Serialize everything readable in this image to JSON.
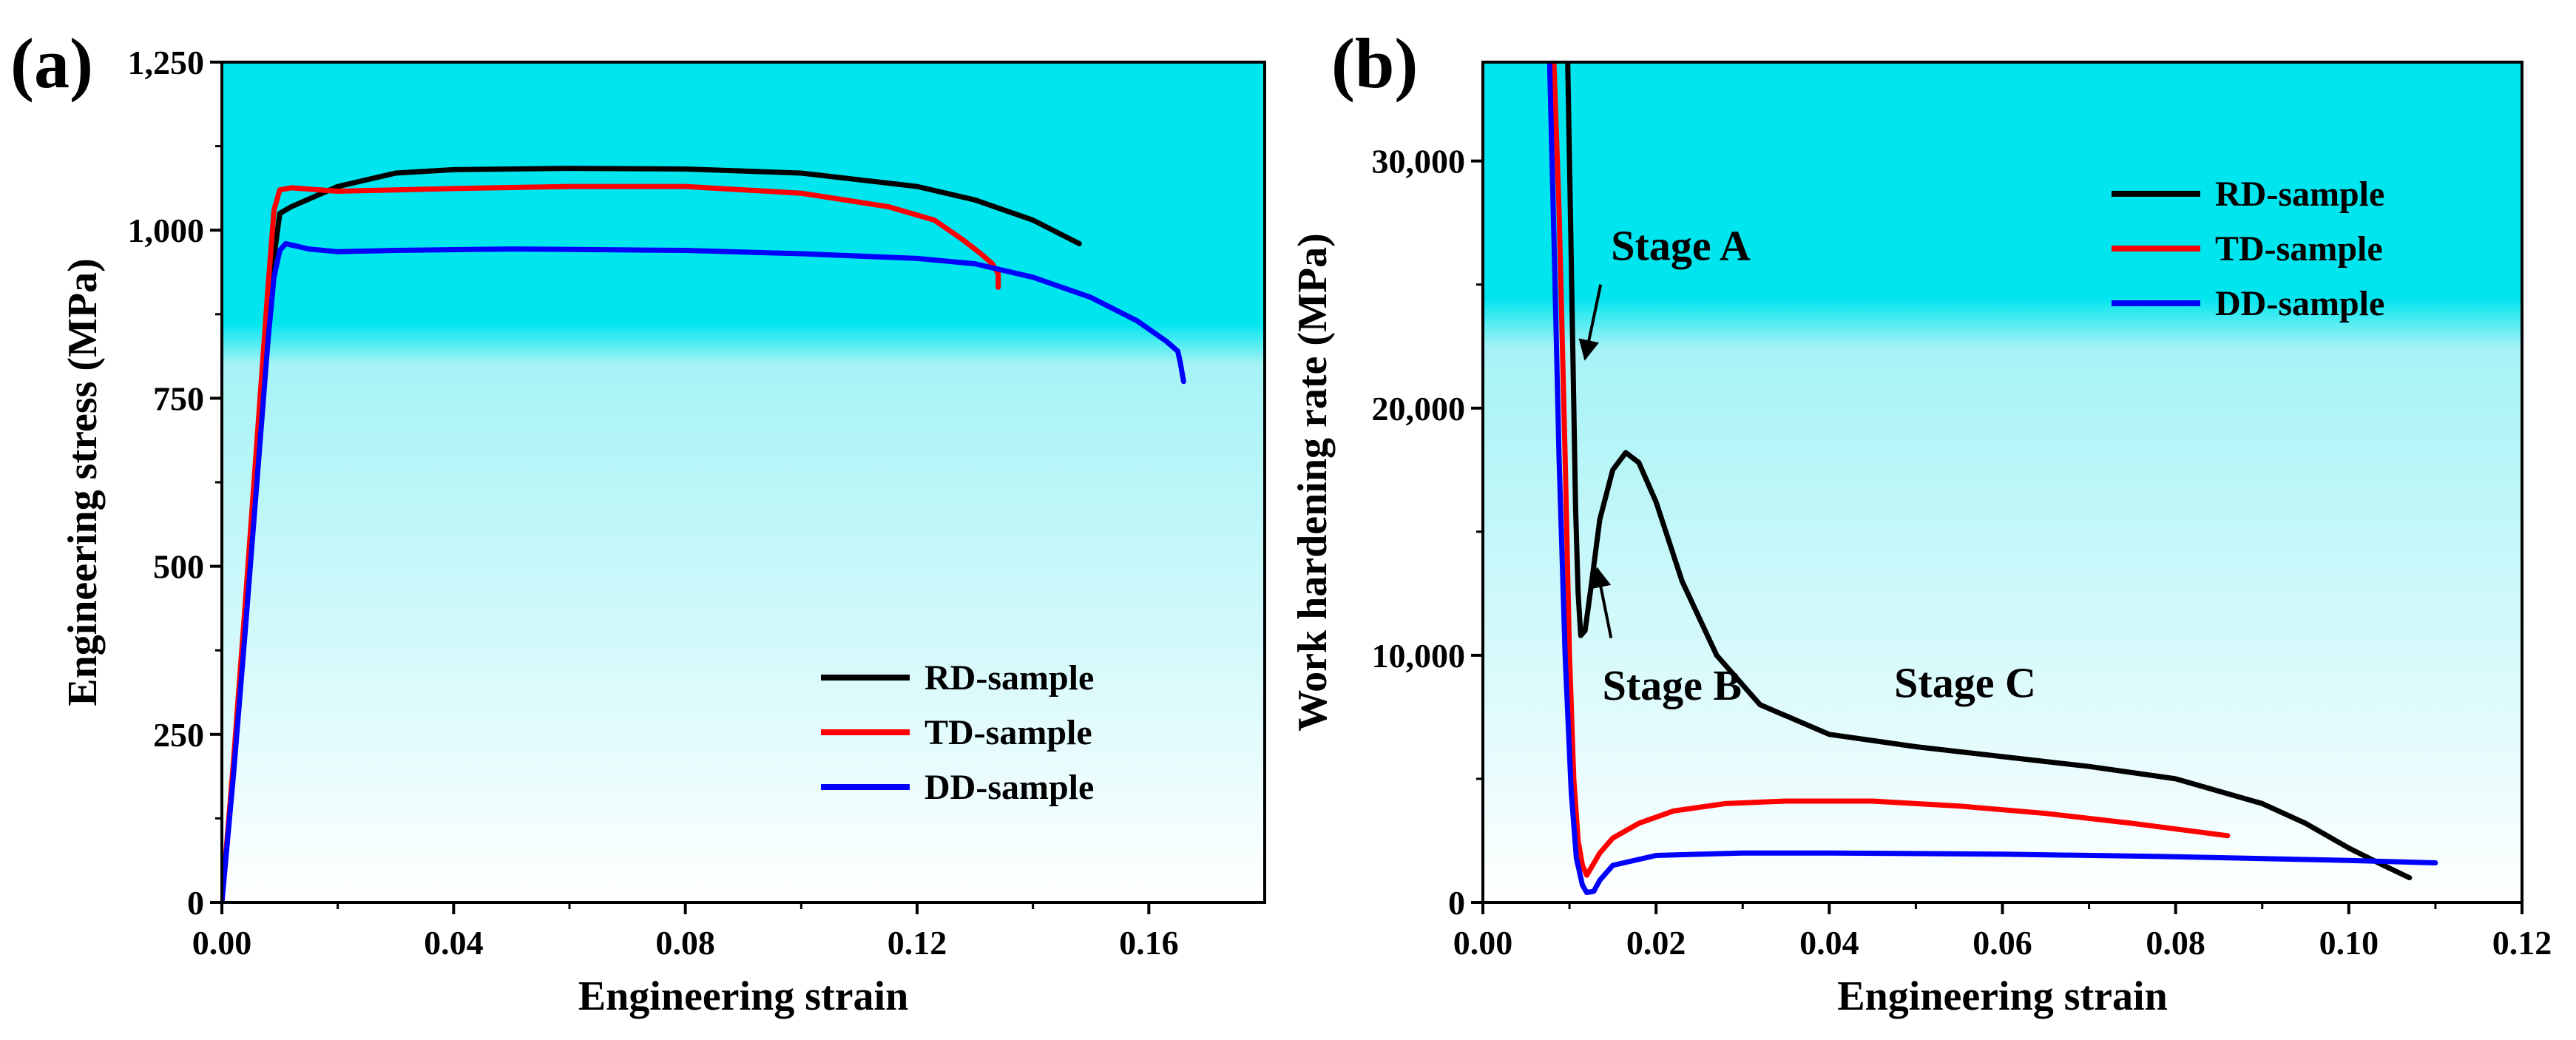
{
  "chart_data": [
    {
      "panel_label": "(a)",
      "type": "line",
      "xlabel": "Engineering strain",
      "ylabel": "Engineering stress (MPa)",
      "xlim": [
        0,
        0.18
      ],
      "ylim": [
        0,
        1250
      ],
      "xticks": [
        0,
        0.04,
        0.08,
        0.12,
        0.16
      ],
      "xtick_labels": [
        "0.00",
        "0.04",
        "0.08",
        "0.12",
        "0.16"
      ],
      "yticks": [
        0,
        250,
        500,
        750,
        1000,
        1250
      ],
      "ytick_labels": [
        "0",
        "250",
        "500",
        "750",
        "1,000",
        "1,250"
      ],
      "legend_position": "lower-right",
      "background_gradient": [
        "#00e5ee",
        "#ffffff"
      ],
      "series": [
        {
          "name": "RD-sample",
          "color": "#000000",
          "x": [
            0,
            0.002,
            0.004,
            0.006,
            0.008,
            0.009,
            0.01,
            0.012,
            0.02,
            0.03,
            0.04,
            0.06,
            0.08,
            0.1,
            0.12,
            0.13,
            0.14,
            0.148
          ],
          "y": [
            0,
            200,
            420,
            650,
            870,
            960,
            1025,
            1035,
            1065,
            1085,
            1090,
            1092,
            1091,
            1085,
            1065,
            1045,
            1015,
            980
          ]
        },
        {
          "name": "TD-sample",
          "color": "#ff0000",
          "x": [
            0,
            0.002,
            0.004,
            0.006,
            0.008,
            0.009,
            0.01,
            0.012,
            0.02,
            0.04,
            0.06,
            0.08,
            0.1,
            0.115,
            0.123,
            0.128,
            0.131,
            0.133,
            0.134,
            0.134
          ],
          "y": [
            0,
            210,
            440,
            680,
            920,
            1030,
            1060,
            1063,
            1058,
            1062,
            1065,
            1065,
            1055,
            1035,
            1015,
            985,
            965,
            950,
            935,
            915
          ]
        },
        {
          "name": "DD-sample",
          "color": "#0000ff",
          "x": [
            0,
            0.002,
            0.004,
            0.006,
            0.008,
            0.009,
            0.01,
            0.011,
            0.012,
            0.015,
            0.02,
            0.03,
            0.05,
            0.08,
            0.1,
            0.12,
            0.13,
            0.14,
            0.15,
            0.158,
            0.163,
            0.165,
            0.1655,
            0.166
          ],
          "y": [
            0,
            190,
            400,
            620,
            840,
            930,
            970,
            980,
            978,
            972,
            968,
            970,
            972,
            970,
            965,
            958,
            950,
            930,
            900,
            865,
            835,
            820,
            800,
            775
          ]
        }
      ]
    },
    {
      "panel_label": "(b)",
      "type": "line",
      "xlabel": "Engineering strain",
      "ylabel": "Work hardening rate (MPa)",
      "xlim": [
        0,
        0.12
      ],
      "ylim": [
        0,
        34000
      ],
      "xticks": [
        0,
        0.02,
        0.04,
        0.06,
        0.08,
        0.1,
        0.12
      ],
      "xtick_labels": [
        "0.00",
        "0.02",
        "0.04",
        "0.06",
        "0.08",
        "0.10",
        "0.12"
      ],
      "yticks": [
        0,
        10000,
        20000,
        30000
      ],
      "ytick_labels": [
        "0",
        "10,000",
        "20,000",
        "30,000"
      ],
      "legend_position": "upper-right",
      "background_gradient": [
        "#00e5ee",
        "#ffffff"
      ],
      "annotations": [
        {
          "text": "Stage A",
          "x": 0.0148,
          "y": 26000,
          "arrow_from": [
            0.0136,
            25000
          ],
          "arrow_to": [
            0.0118,
            22000
          ]
        },
        {
          "text": "Stage B",
          "x": 0.0138,
          "y": 8200,
          "arrow_from": [
            0.0148,
            10700
          ],
          "arrow_to": [
            0.0132,
            13500
          ]
        },
        {
          "text": "Stage C",
          "x": 0.0475,
          "y": 8300
        }
      ],
      "series": [
        {
          "name": "RD-sample",
          "color": "#000000",
          "x": [
            0.0098,
            0.0101,
            0.0104,
            0.0107,
            0.011,
            0.0113,
            0.0118,
            0.0125,
            0.0135,
            0.015,
            0.0165,
            0.018,
            0.02,
            0.023,
            0.027,
            0.032,
            0.04,
            0.05,
            0.06,
            0.07,
            0.08,
            0.09,
            0.095,
            0.1,
            0.104,
            0.107
          ],
          "y": [
            34000,
            28000,
            22000,
            16000,
            12500,
            10800,
            11000,
            12800,
            15500,
            17500,
            18200,
            17800,
            16200,
            13000,
            10000,
            8000,
            6800,
            6300,
            5900,
            5500,
            5000,
            4000,
            3200,
            2200,
            1500,
            1000
          ]
        },
        {
          "name": "TD-sample",
          "color": "#ff0000",
          "x": [
            0.0082,
            0.0088,
            0.0095,
            0.01,
            0.0105,
            0.011,
            0.0115,
            0.012,
            0.0125,
            0.0135,
            0.015,
            0.018,
            0.022,
            0.028,
            0.035,
            0.045,
            0.055,
            0.065,
            0.075,
            0.086
          ],
          "y": [
            34000,
            28000,
            18000,
            10000,
            5000,
            2500,
            1500,
            1100,
            1400,
            2000,
            2600,
            3200,
            3700,
            4000,
            4100,
            4100,
            3900,
            3600,
            3200,
            2700
          ]
        },
        {
          "name": "DD-sample",
          "color": "#0000ff",
          "x": [
            0.0077,
            0.0082,
            0.0088,
            0.0095,
            0.0102,
            0.0108,
            0.0115,
            0.012,
            0.0128,
            0.0135,
            0.015,
            0.02,
            0.03,
            0.04,
            0.06,
            0.08,
            0.1,
            0.11
          ],
          "y": [
            34000,
            27000,
            18000,
            10000,
            4500,
            1800,
            700,
            400,
            450,
            900,
            1500,
            1900,
            2000,
            2000,
            1950,
            1850,
            1700,
            1600
          ]
        }
      ]
    }
  ]
}
